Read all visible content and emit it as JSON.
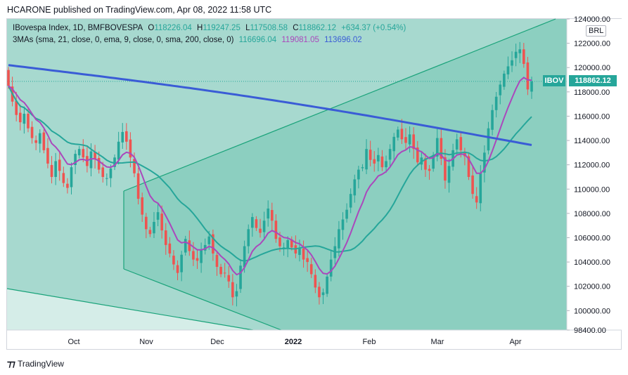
{
  "header": {
    "text": "HCARONE published on TradingView.com, Apr 08, 2022 11:58 UTC"
  },
  "legend": {
    "symbol": "IBovespa Index, 1D, BMFBOVESPA",
    "o_label": "O",
    "o_value": "118226.04",
    "h_label": "H",
    "h_value": "119247.25",
    "l_label": "L",
    "l_value": "117508.58",
    "c_label": "C",
    "c_value": "118862.12",
    "change": "+634.37 (+0.54%)",
    "ma_label": "3MAs (sma, 21, close, 0, ema, 9, close, 0, sma, 200, close, 0)",
    "ma1_value": "116696.04",
    "ma2_value": "119081.05",
    "ma3_value": "113696.02"
  },
  "price_scale": {
    "currency": "BRL",
    "ticks": [
      "124000.00",
      "122000.00",
      "120000.00",
      "118000.00",
      "116000.00",
      "114000.00",
      "112000.00",
      "110000.00",
      "108000.00",
      "106000.00",
      "104000.00",
      "102000.00",
      "100000.00",
      "98400.00"
    ],
    "last_symbol": "IBOV",
    "last_price": "118862.12"
  },
  "time_scale": {
    "ticks": [
      "Oct",
      "Nov",
      "Dec",
      "2022",
      "Feb",
      "Mar",
      "Apr"
    ]
  },
  "footer": {
    "brand": "TradingView"
  },
  "colors": {
    "up": "#26a69a",
    "down": "#ef5350",
    "sma21": "#26a69a",
    "ema9": "#ab47bc",
    "sma200": "#3a5cd6",
    "trendline": "#1aa37a"
  },
  "chart_data": {
    "type": "candlestick",
    "title": "IBovespa Index, 1D, BMFBOVESPA",
    "ylim": [
      98400,
      124000
    ],
    "x_months": [
      "Oct",
      "Nov",
      "Dec",
      "2022",
      "Feb",
      "Mar",
      "Apr"
    ],
    "closes": [
      118500,
      117200,
      116100,
      115500,
      116200,
      115000,
      114200,
      113800,
      114600,
      113200,
      112100,
      111000,
      112300,
      111500,
      110500,
      110100,
      111800,
      112900,
      113300,
      112600,
      111900,
      113100,
      112500,
      111600,
      111000,
      110900,
      111700,
      112600,
      113900,
      114700,
      113900,
      112600,
      111300,
      109200,
      107900,
      106700,
      106300,
      107300,
      108100,
      106600,
      105400,
      104700,
      103800,
      103100,
      104600,
      105900,
      104900,
      104200,
      104100,
      105000,
      105400,
      106100,
      104700,
      103600,
      103000,
      103100,
      102400,
      101100,
      101600,
      103700,
      105300,
      106700,
      107700,
      106800,
      106400,
      107400,
      108400,
      107400,
      105900,
      105300,
      105200,
      105800,
      105200,
      104700,
      105100,
      104200,
      104000,
      103000,
      101900,
      101100,
      101500,
      102800,
      104200,
      105300,
      106700,
      107500,
      108300,
      109600,
      110800,
      111600,
      111800,
      113300,
      112400,
      112100,
      112800,
      111800,
      112300,
      113300,
      114300,
      114900,
      114100,
      113800,
      114500,
      113300,
      112200,
      112600,
      111600,
      111500,
      112800,
      114200,
      112500,
      110700,
      111900,
      113200,
      114100,
      113200,
      112700,
      111000,
      109600,
      108900,
      111300,
      113000,
      115000,
      116500,
      117600,
      118600,
      119500,
      120100,
      120600,
      121300,
      121500,
      120300,
      118200,
      118862
    ]
  }
}
